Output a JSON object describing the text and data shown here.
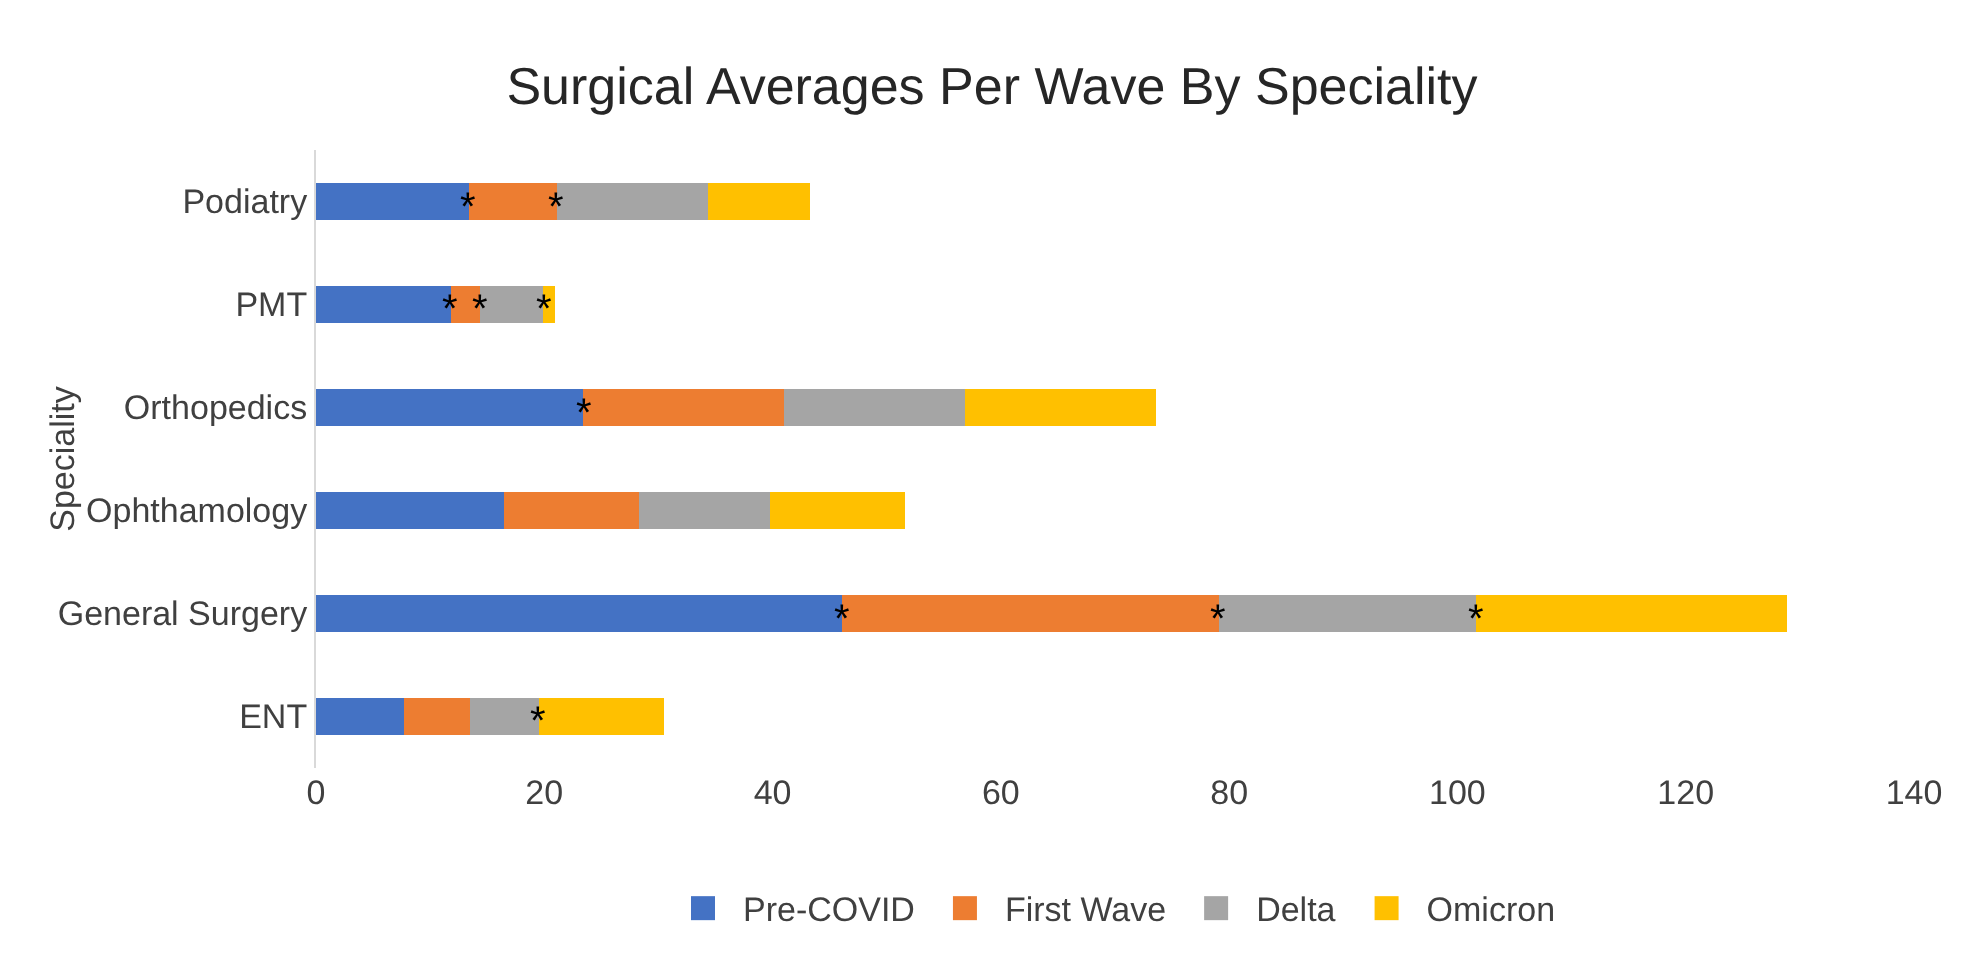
{
  "chart_data": {
    "type": "bar",
    "orientation": "horizontal",
    "stacked": true,
    "title": "Surgical Averages Per Wave By Speciality",
    "ylabel": "Speciality",
    "categories": [
      "Podiatry",
      "PMT",
      "Orthopedics",
      "Ophthamology",
      "General Surgery",
      "ENT"
    ],
    "series": [
      {
        "name": "Pre-COVID",
        "color": "#4472c4",
        "values": [
          13.4,
          11.8,
          23.4,
          16.5,
          46.1,
          7.7
        ]
      },
      {
        "name": "First Wave",
        "color": "#ed7d31",
        "values": [
          7.7,
          2.6,
          17.6,
          11.8,
          33.0,
          5.8
        ]
      },
      {
        "name": "Delta",
        "color": "#a5a5a5",
        "values": [
          13.2,
          5.5,
          15.9,
          11.5,
          22.5,
          6.0
        ]
      },
      {
        "name": "Omicron",
        "color": "#ffc000",
        "values": [
          9.0,
          1.0,
          16.7,
          11.8,
          27.3,
          11.0
        ]
      }
    ],
    "xlim": [
      0,
      140
    ],
    "xticks": [
      0,
      20,
      40,
      60,
      80,
      100,
      120,
      140
    ],
    "grid": false,
    "legend": "bottom",
    "annotations": [
      {
        "text": "*",
        "x": 13.4,
        "y": "Podiatry"
      },
      {
        "text": "*",
        "x": 21.1,
        "y": "Podiatry"
      },
      {
        "text": "*",
        "x": 11.8,
        "y": "PMT"
      },
      {
        "text": "*",
        "x": 14.4,
        "y": "PMT"
      },
      {
        "text": "*",
        "x": 19.9,
        "y": "PMT"
      },
      {
        "text": "*",
        "x": 23.4,
        "y": "Orthopedics"
      },
      {
        "text": "*",
        "x": 46.1,
        "y": "General Surgery"
      },
      {
        "text": "*",
        "x": 79.1,
        "y": "General Surgery"
      },
      {
        "text": "*",
        "x": 101.6,
        "y": "General Surgery"
      },
      {
        "text": "*",
        "x": 19.5,
        "y": "ENT"
      }
    ]
  }
}
